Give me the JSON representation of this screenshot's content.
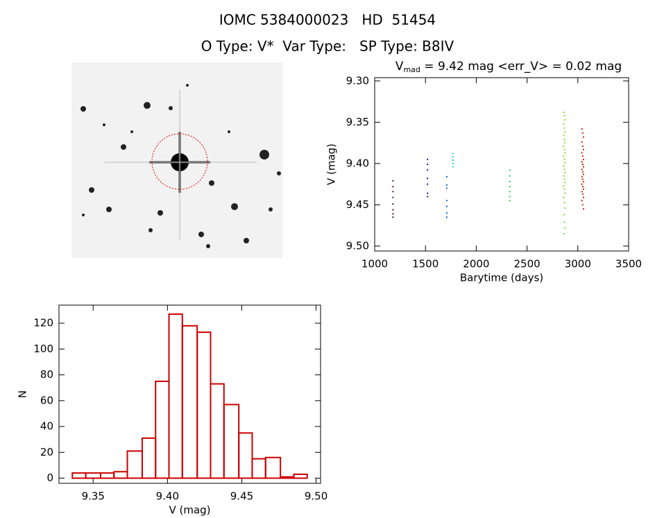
{
  "title": "IOMC 5384000023   HD  51454",
  "subtitle": "O Type: V*  Var Type:   SP Type: B8IV",
  "chart_data": [
    {
      "type": "scatter",
      "title": "V",
      "title_subscript": "mad",
      "title_rest": " = 9.42 mag <err_V> = 0.02 mag",
      "xlabel": "Barytime (days)",
      "ylabel": "V (mag)",
      "xlim": [
        1000,
        3500
      ],
      "xticks": [
        1000,
        1500,
        2000,
        2500,
        3000,
        3500
      ],
      "ylim": [
        9.506,
        9.296
      ],
      "yticks": [
        {
          "value": 9.3,
          "label": "9.30"
        },
        9.35,
        {
          "value": 9.4,
          "label": "9.40"
        },
        9.45,
        {
          "value": 9.5,
          "label": "9.50"
        }
      ],
      "series": [
        {
          "color": "#660066",
          "x": [
            1180,
            1180,
            1180,
            1180,
            1180,
            1180,
            1180,
            1180
          ],
          "values": [
            9.421,
            9.428,
            9.434,
            9.441,
            9.449,
            9.456,
            9.461,
            9.465
          ]
        },
        {
          "color": "#1a1a99",
          "x": [
            1520,
            1520,
            1520,
            1520,
            1520,
            1520,
            1520
          ],
          "values": [
            9.395,
            9.401,
            9.408,
            9.418,
            9.425,
            9.436,
            9.44
          ]
        },
        {
          "color": "#0066cc",
          "x": [
            1710,
            1710,
            1710,
            1710,
            1710,
            1710,
            1710
          ],
          "values": [
            9.416,
            9.426,
            9.43,
            9.445,
            9.452,
            9.46,
            9.465
          ]
        },
        {
          "color": "#22cccc",
          "x": [
            1770,
            1770,
            1770,
            1770,
            1770
          ],
          "values": [
            9.388,
            9.392,
            9.396,
            9.4,
            9.404
          ]
        },
        {
          "color": "#33cc55",
          "x": [
            2330,
            2330,
            2330,
            2330,
            2330,
            2330,
            2330
          ],
          "values": [
            9.408,
            9.415,
            9.422,
            9.428,
            9.434,
            9.44,
            9.445
          ]
        },
        {
          "color": "#77e033",
          "x": [
            2862,
            2868,
            2874,
            2862,
            2868,
            2874,
            2862,
            2868,
            2874,
            2862,
            2868,
            2874,
            2862,
            2868,
            2874,
            2862,
            2868,
            2874,
            2862,
            2868,
            2874,
            2862,
            2868,
            2874,
            2862,
            2868,
            2874,
            2862,
            2868,
            2874,
            2862
          ],
          "values": [
            9.338,
            9.342,
            9.347,
            9.352,
            9.357,
            9.362,
            9.366,
            9.371,
            9.375,
            9.379,
            9.383,
            9.387,
            9.391,
            9.395,
            9.399,
            9.403,
            9.407,
            9.411,
            9.415,
            9.419,
            9.423,
            9.427,
            9.431,
            9.436,
            9.441,
            9.447,
            9.454,
            9.462,
            9.471,
            9.478,
            9.485
          ]
        },
        {
          "color": "#cc2200",
          "x": [
            3040,
            3048,
            3056,
            3040,
            3048,
            3056,
            3040,
            3048,
            3056,
            3040,
            3048,
            3056,
            3040,
            3048,
            3056,
            3040,
            3048,
            3056,
            3040,
            3048,
            3056,
            3040,
            3048,
            3056,
            3040,
            3048,
            3056
          ],
          "values": [
            9.358,
            9.363,
            9.368,
            9.374,
            9.379,
            9.383,
            9.387,
            9.391,
            9.395,
            9.398,
            9.401,
            9.404,
            9.407,
            9.41,
            9.413,
            9.416,
            9.419,
            9.422,
            9.425,
            9.428,
            9.431,
            9.434,
            9.437,
            9.441,
            9.445,
            9.45,
            9.455
          ]
        }
      ]
    },
    {
      "type": "histogram",
      "xlabel": "V (mag)",
      "ylabel": "N",
      "color": "#cc0000",
      "bins": [
        9.336,
        9.345,
        9.355,
        9.364,
        9.373,
        9.383,
        9.392,
        9.401,
        9.41,
        9.42,
        9.429,
        9.438,
        9.448,
        9.457,
        9.466,
        9.476,
        9.485,
        9.494
      ],
      "values": [
        4,
        4,
        4,
        5,
        21,
        31,
        75,
        127,
        118,
        113,
        73,
        57,
        35,
        15,
        16,
        1,
        3
      ],
      "xlim": [
        9.327,
        9.503
      ],
      "xticks": [
        9.35,
        {
          "value": 9.4,
          "label": "9.40"
        },
        9.45,
        {
          "value": 9.5,
          "label": "9.50"
        }
      ],
      "ylim": [
        -4,
        134
      ],
      "yticks": [
        0,
        20,
        40,
        60,
        80,
        100,
        120
      ]
    }
  ]
}
